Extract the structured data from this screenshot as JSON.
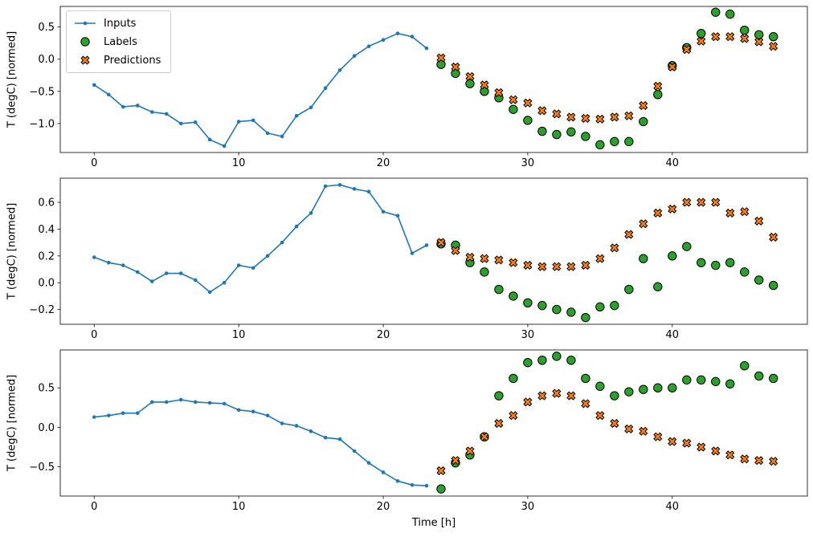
{
  "figure": {
    "xlabel": "Time [h]",
    "background": "#ffffff"
  },
  "legend": {
    "items": [
      {
        "label": "Inputs",
        "marker": "line-dot",
        "color": "#1f77b4"
      },
      {
        "label": "Labels",
        "marker": "circle",
        "color": "#2ca02c"
      },
      {
        "label": "Predictions",
        "marker": "x",
        "color": "#ff7f0e"
      }
    ]
  },
  "chart_data": {
    "type": "line",
    "description": "Three stacked time-series subplots: blue input line (hours 0-23), green label dots and orange X prediction markers (hours 24-47)",
    "xlabel": "Time [h]",
    "xticks": [
      0,
      10,
      20,
      30,
      40
    ],
    "xlim": [
      -2.35,
      49.35
    ],
    "x_inputs": [
      0,
      1,
      2,
      3,
      4,
      5,
      6,
      7,
      8,
      9,
      10,
      11,
      12,
      13,
      14,
      15,
      16,
      17,
      18,
      19,
      20,
      21,
      22,
      23
    ],
    "x_outputs": [
      24,
      25,
      26,
      27,
      28,
      29,
      30,
      31,
      32,
      33,
      34,
      35,
      36,
      37,
      38,
      39,
      40,
      41,
      42,
      43,
      44,
      45,
      46,
      47
    ],
    "colors": {
      "inputs": "#1f77b4",
      "labels": "#2ca02c",
      "predictions": "#ff7f0e"
    },
    "charts": [
      {
        "ylabel": "T (degC) [normed]",
        "ylim": [
          -1.45,
          0.82
        ],
        "yticks": [
          0.5,
          0.0,
          -0.5,
          -1.0
        ],
        "inputs": [
          -0.4,
          -0.55,
          -0.74,
          -0.72,
          -0.82,
          -0.85,
          -1.0,
          -0.98,
          -1.25,
          -1.35,
          -0.97,
          -0.95,
          -1.15,
          -1.2,
          -0.88,
          -0.75,
          -0.45,
          -0.17,
          0.05,
          0.2,
          0.3,
          0.4,
          0.35,
          0.17
        ],
        "labels": [
          -0.08,
          -0.22,
          -0.38,
          -0.5,
          -0.6,
          -0.78,
          -0.95,
          -1.12,
          -1.17,
          -1.13,
          -1.2,
          -1.33,
          -1.28,
          -1.28,
          -0.97,
          -0.55,
          -0.1,
          0.18,
          0.4,
          0.73,
          0.7,
          0.45,
          0.38,
          0.35
        ],
        "predictions": [
          0.02,
          -0.12,
          -0.27,
          -0.4,
          -0.52,
          -0.63,
          -0.68,
          -0.8,
          -0.85,
          -0.9,
          -0.92,
          -0.93,
          -0.9,
          -0.88,
          -0.72,
          -0.42,
          -0.12,
          0.15,
          0.28,
          0.35,
          0.35,
          0.32,
          0.27,
          0.2
        ]
      },
      {
        "ylabel": "T (degC) [normed]",
        "ylim": [
          -0.31,
          0.78
        ],
        "yticks": [
          0.6,
          0.4,
          0.2,
          0.0,
          -0.2
        ],
        "inputs": [
          0.19,
          0.15,
          0.13,
          0.08,
          0.01,
          0.07,
          0.07,
          0.02,
          -0.07,
          0.0,
          0.13,
          0.11,
          0.2,
          0.3,
          0.42,
          0.52,
          0.72,
          0.73,
          0.7,
          0.68,
          0.53,
          0.5,
          0.22,
          0.28
        ],
        "labels": [
          0.29,
          0.28,
          0.15,
          0.08,
          -0.05,
          -0.1,
          -0.15,
          -0.17,
          -0.2,
          -0.22,
          -0.26,
          -0.18,
          -0.17,
          -0.05,
          0.18,
          -0.03,
          0.2,
          0.27,
          0.15,
          0.13,
          0.15,
          0.08,
          0.02,
          -0.02
        ],
        "predictions": [
          0.3,
          0.24,
          0.19,
          0.18,
          0.17,
          0.15,
          0.13,
          0.12,
          0.12,
          0.12,
          0.13,
          0.18,
          0.26,
          0.36,
          0.44,
          0.52,
          0.55,
          0.6,
          0.6,
          0.6,
          0.52,
          0.53,
          0.46,
          0.34
        ]
      },
      {
        "ylabel": "T (degC) [normed]",
        "ylim": [
          -0.87,
          0.98
        ],
        "yticks": [
          0.5,
          0.0,
          -0.5
        ],
        "inputs": [
          0.13,
          0.15,
          0.18,
          0.18,
          0.32,
          0.32,
          0.35,
          0.32,
          0.31,
          0.3,
          0.22,
          0.2,
          0.15,
          0.05,
          0.02,
          -0.05,
          -0.13,
          -0.15,
          -0.3,
          -0.45,
          -0.57,
          -0.68,
          -0.73,
          -0.74
        ],
        "labels": [
          -0.78,
          -0.45,
          -0.35,
          -0.12,
          0.4,
          0.62,
          0.82,
          0.85,
          0.9,
          0.85,
          0.62,
          0.52,
          0.4,
          0.45,
          0.48,
          0.5,
          0.5,
          0.6,
          0.6,
          0.58,
          0.55,
          0.78,
          0.65,
          0.62
        ],
        "predictions": [
          -0.55,
          -0.42,
          -0.3,
          -0.12,
          0.05,
          0.15,
          0.32,
          0.4,
          0.43,
          0.4,
          0.3,
          0.15,
          0.05,
          -0.02,
          -0.05,
          -0.12,
          -0.18,
          -0.2,
          -0.25,
          -0.3,
          -0.35,
          -0.4,
          -0.42,
          -0.43
        ]
      }
    ]
  }
}
